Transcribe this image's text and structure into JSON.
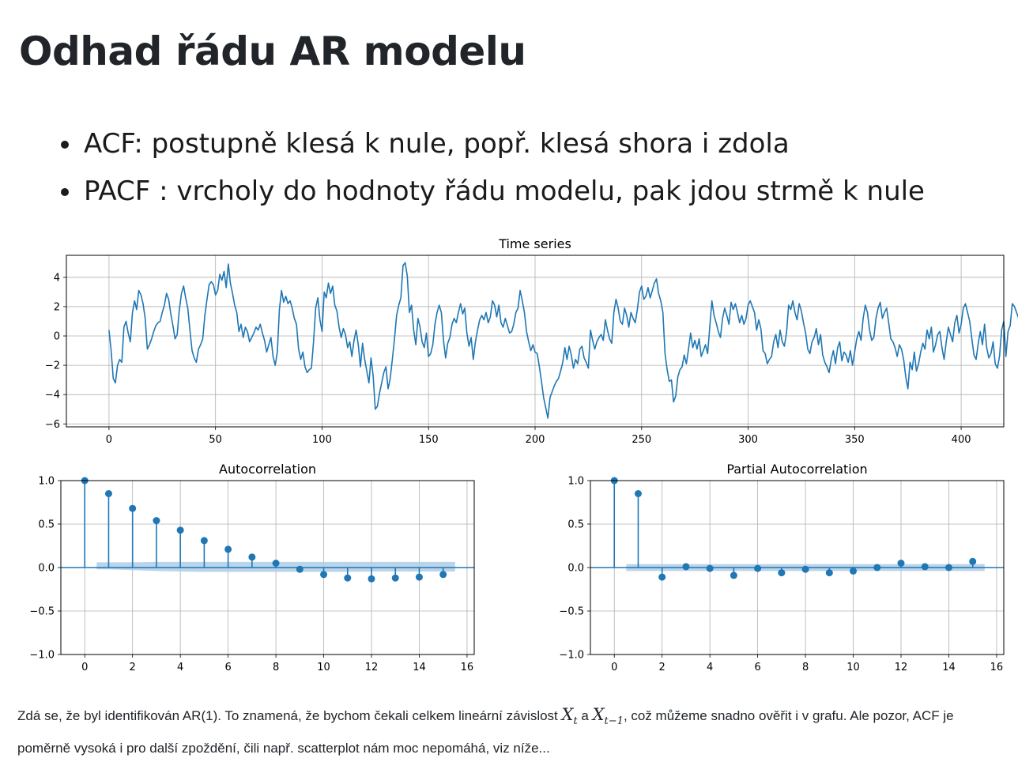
{
  "page": {
    "title": "Odhad řádu AR modelu",
    "bullets": [
      "ACF: postupně klesá k nule, popř. klesá shora i zdola",
      "PACF : vrcholy do hodnoty řádu modelu, pak jdou strmě k nule"
    ],
    "footer": {
      "line1_a": "Zdá se, že byl identifikován AR(1). To znamená, že bychom čekali celkem lineární závislost ",
      "math1": "X",
      "math1_sub": "t",
      "line1_b": " a ",
      "math2": "X",
      "math2_sub": "t−1",
      "line1_c": ", což můžeme snadno ověřit i v grafu. Ale pozor, ACF je poměrně vysoká i pro další zpoždění, čili např. scatterplot nám moc nepomáhá, viz níže..."
    }
  },
  "colors": {
    "series": "#1f77b4",
    "confidence_band": "#aecde6",
    "grid": "#b0b0b0",
    "text": "#212529"
  },
  "chart_data": [
    {
      "type": "line",
      "title": "Time series",
      "xlabel": "",
      "ylabel": "",
      "xlim": [
        -20,
        420
      ],
      "ylim": [
        -6.2,
        5.5
      ],
      "xticks": [
        0,
        50,
        100,
        150,
        200,
        250,
        300,
        350,
        400
      ],
      "yticks": [
        -6,
        -4,
        -2,
        0,
        2,
        4
      ],
      "grid": true,
      "series": [
        {
          "x_start": 0,
          "x_step": 1,
          "values": [
            0.4,
            -1.0,
            -2.9,
            -3.2,
            -2.0,
            -1.6,
            -1.8,
            0.6,
            1.0,
            0.2,
            -0.4,
            1.6,
            2.4,
            1.8,
            3.1,
            2.8,
            2.2,
            1.2,
            -0.9,
            -0.6,
            -0.2,
            0.3,
            0.7,
            0.9,
            1.0,
            1.6,
            2.1,
            2.9,
            2.5,
            1.5,
            0.7,
            -0.2,
            0.1,
            1.8,
            2.9,
            3.4,
            2.6,
            1.9,
            0.4,
            -1.0,
            -1.5,
            -1.8,
            -0.9,
            -0.6,
            -0.2,
            1.4,
            2.5,
            3.5,
            3.7,
            3.5,
            2.8,
            3.1,
            4.2,
            3.8,
            4.4,
            3.3,
            4.9,
            3.6,
            2.9,
            2.1,
            1.6,
            0.3,
            0.8,
            -0.1,
            0.6,
            0.3,
            -0.4,
            -0.1,
            0.2,
            0.6,
            0.4,
            0.8,
            0.2,
            -0.3,
            -1.1,
            -0.6,
            -0.1,
            -1.4,
            -2.0,
            -1.1,
            1.8,
            3.1,
            2.3,
            2.7,
            2.2,
            2.4,
            1.9,
            1.2,
            0.8,
            -0.9,
            -1.6,
            -1.1,
            -2.1,
            -2.5,
            -2.3,
            -2.2,
            -0.4,
            1.9,
            2.6,
            1.1,
            0.3,
            3.0,
            2.6,
            3.6,
            2.9,
            3.4,
            2.1,
            1.7,
            0.6,
            -0.1,
            0.5,
            0.1,
            -0.8,
            -0.4,
            -1.4,
            -0.3,
            0.4,
            -0.6,
            -2.1,
            -0.5,
            -1.6,
            -2.4,
            -3.2,
            -1.5,
            -2.7,
            -5.0,
            -4.8,
            -3.9,
            -3.2,
            -2.5,
            -2.1,
            -3.6,
            -2.9,
            -1.6,
            -0.2,
            1.4,
            2.1,
            2.6,
            4.8,
            5.0,
            4.1,
            1.6,
            2.1,
            0.4,
            -0.6,
            1.2,
            0.6,
            -0.4,
            -0.8,
            0.2,
            -1.4,
            -1.2,
            -0.6,
            0.8,
            1.6,
            2.1,
            1.6,
            -0.3,
            -1.5,
            -0.5,
            -0.1,
            0.8,
            1.2,
            0.9,
            1.6,
            2.2,
            1.5,
            1.9,
            0.2,
            -0.7,
            -0.1,
            -1.6,
            -0.4,
            0.4,
            1.1,
            1.4,
            1.1,
            1.6,
            0.9,
            1.3,
            2.4,
            2.1,
            1.3,
            2.1,
            0.9,
            0.6,
            1.2,
            0.7,
            0.2,
            0.3,
            0.8,
            1.6,
            1.9,
            3.1,
            2.4,
            1.6,
            0.3,
            -0.4,
            -1.0,
            -0.6,
            -1.1,
            -1.2,
            -2.1,
            -3.1,
            -4.2,
            -4.9,
            -5.6,
            -4.2,
            -3.8,
            -3.4,
            -3.1,
            -2.9,
            -2.4,
            -1.8,
            -0.8,
            -1.6,
            -0.7,
            -1.3,
            -2.2,
            -1.6,
            -1.9,
            -0.9,
            -0.7,
            -1.5,
            -1.8,
            -2.2,
            0.4,
            -0.3,
            -0.9,
            -0.4,
            -0.1,
            0.1,
            -0.3,
            1.1,
            0.4,
            -0.2,
            -0.5,
            1.6,
            2.5,
            1.9,
            1.0,
            0.8,
            1.9,
            1.4,
            0.6,
            1.6,
            1.2,
            0.9,
            1.8,
            3.0,
            3.4,
            2.5,
            2.7,
            3.3,
            2.6,
            3.1,
            3.6,
            3.9,
            2.9,
            2.4,
            1.6,
            -1.2,
            -2.3,
            -3.1,
            -3.0,
            -4.5,
            -4.1,
            -2.8,
            -2.3,
            -2.1,
            -1.3,
            -1.9,
            -0.9,
            0.2,
            -0.8,
            -0.3,
            -0.9,
            -0.2,
            -1.4,
            -1.0,
            -0.6,
            -1.2,
            0.6,
            2.4,
            1.4,
            0.9,
            0.3,
            -0.1,
            1.2,
            1.9,
            1.4,
            0.8,
            2.3,
            1.8,
            2.2,
            1.6,
            0.9,
            1.4,
            0.8,
            1.2,
            2.1,
            2.4,
            2.0,
            1.6,
            0.4,
            1.1,
            0.5,
            -1.0,
            -1.2,
            -1.9,
            -1.6,
            -1.4,
            -0.4,
            0.1,
            -0.8,
            0.4,
            -0.4,
            -0.7,
            0.2,
            2.1,
            1.8,
            2.4,
            1.6,
            1.1,
            2.2,
            1.7,
            0.9,
            0.2,
            -0.9,
            -1.2,
            -0.4,
            -0.1,
            0.5,
            -0.6,
            0.1,
            -1.3,
            -1.8,
            -2.1,
            -2.5,
            -1.6,
            -1.0,
            -1.9,
            -0.8,
            -0.4,
            -1.7,
            -1.1,
            -1.3,
            -1.8,
            -1.0,
            -2.0,
            -1.1,
            -0.2,
            0.3,
            -0.3,
            1.2,
            2.1,
            1.6,
            0.4,
            -0.3,
            -0.1,
            1.2,
            1.9,
            2.3,
            1.2,
            1.6,
            1.9,
            0.9,
            -0.2,
            -0.4,
            -0.8,
            -1.4,
            -0.6,
            -0.9,
            -1.6,
            -2.8,
            -3.6,
            -1.8,
            -2.3,
            -1.1,
            -2.4,
            -1.9,
            -1.1,
            -0.5,
            -0.9,
            0.4,
            -0.2,
            0.6,
            -1.1,
            -0.6,
            0.1,
            0.3,
            -0.8,
            -1.6,
            -0.4,
            0.6,
            0.1,
            -0.4,
            0.9,
            1.4,
            0.2,
            0.8,
            1.9,
            2.2,
            1.6,
            1.0,
            -0.2,
            -1.3,
            -1.6,
            -0.5,
            0.3,
            -0.6,
            0.8,
            -0.8,
            -1.5,
            -1.2,
            -0.4,
            -1.9,
            -2.2,
            -1.4,
            0.4,
            1.0,
            -1.4,
            0.3,
            0.7,
            2.2,
            2.0,
            1.6,
            1.2,
            1.7
          ]
        }
      ]
    },
    {
      "type": "stem",
      "title": "Autocorrelation",
      "xlim": [
        -1,
        16.3
      ],
      "ylim": [
        -1.0,
        1.0
      ],
      "xticks": [
        0,
        2,
        4,
        6,
        8,
        10,
        12,
        14,
        16
      ],
      "yticks": [
        -1.0,
        -0.5,
        0.0,
        0.5,
        1.0
      ],
      "grid": true,
      "lags": [
        0,
        1,
        2,
        3,
        4,
        5,
        6,
        7,
        8,
        9,
        10,
        11,
        12,
        13,
        14,
        15
      ],
      "values": [
        1.0,
        0.85,
        0.68,
        0.54,
        0.43,
        0.31,
        0.21,
        0.12,
        0.05,
        -0.02,
        -0.08,
        -0.12,
        -0.13,
        -0.12,
        -0.11,
        -0.08
      ],
      "confidence_band": {
        "lags": [
          0.5,
          1,
          2,
          3,
          4,
          5,
          6,
          7,
          8,
          9,
          10,
          11,
          12,
          13,
          14,
          15,
          15.5
        ],
        "upper": [
          0.06,
          0.06,
          0.06,
          0.065,
          0.065,
          0.065,
          0.065,
          0.065,
          0.065,
          0.065,
          0.065,
          0.065,
          0.065,
          0.065,
          0.065,
          0.065,
          0.065
        ],
        "lower": [
          -0.02,
          -0.02,
          -0.03,
          -0.04,
          -0.045,
          -0.05,
          -0.05,
          -0.05,
          -0.05,
          -0.05,
          -0.05,
          -0.05,
          -0.045,
          -0.045,
          -0.045,
          -0.045,
          -0.045
        ]
      }
    },
    {
      "type": "stem",
      "title": "Partial Autocorrelation",
      "xlim": [
        -1,
        16.3
      ],
      "ylim": [
        -1.0,
        1.0
      ],
      "xticks": [
        0,
        2,
        4,
        6,
        8,
        10,
        12,
        14,
        16
      ],
      "yticks": [
        -1.0,
        -0.5,
        0.0,
        0.5,
        1.0
      ],
      "grid": true,
      "lags": [
        0,
        1,
        2,
        3,
        4,
        5,
        6,
        7,
        8,
        9,
        10,
        11,
        12,
        13,
        14,
        15
      ],
      "values": [
        1.0,
        0.85,
        -0.11,
        0.01,
        -0.01,
        -0.09,
        -0.01,
        -0.06,
        -0.02,
        -0.06,
        -0.04,
        0.0,
        0.05,
        0.01,
        0.0,
        0.07
      ],
      "confidence_band": {
        "lags": [
          0.5,
          15.5
        ],
        "upper": [
          0.04,
          0.04
        ],
        "lower": [
          -0.04,
          -0.04
        ]
      }
    }
  ]
}
